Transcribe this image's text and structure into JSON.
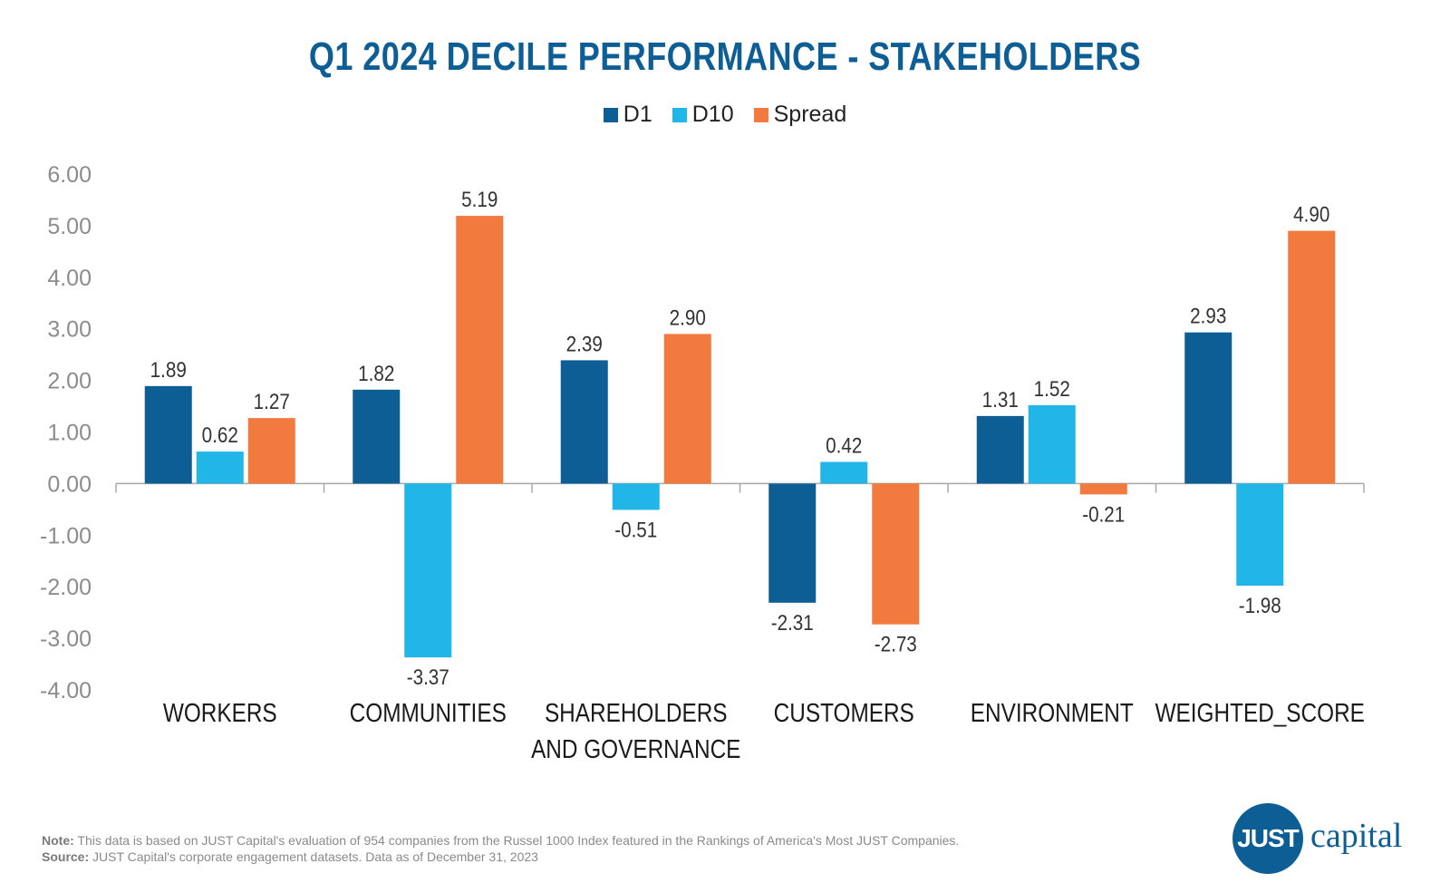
{
  "chart_data": {
    "type": "bar",
    "title": "Q1 2024 DECILE PERFORMANCE - STAKEHOLDERS",
    "categories": [
      "WORKERS",
      "COMMUNITIES",
      "SHAREHOLDERS AND GOVERNANCE",
      "CUSTOMERS",
      "ENVIRONMENT",
      "WEIGHTED_SCORE"
    ],
    "category_lines": [
      [
        "WORKERS"
      ],
      [
        "COMMUNITIES"
      ],
      [
        "SHAREHOLDERS",
        "AND GOVERNANCE"
      ],
      [
        "CUSTOMERS"
      ],
      [
        "ENVIRONMENT"
      ],
      [
        "WEIGHTED_SCORE"
      ]
    ],
    "series": [
      {
        "name": "D1",
        "color": "#0E5E96",
        "values": [
          1.89,
          1.82,
          2.39,
          -2.31,
          1.31,
          2.93
        ]
      },
      {
        "name": "D10",
        "color": "#22B5E8",
        "values": [
          0.62,
          -3.37,
          -0.51,
          0.42,
          1.52,
          -1.98
        ]
      },
      {
        "name": "Spread",
        "color": "#F27A3F",
        "values": [
          1.27,
          5.19,
          2.9,
          -2.73,
          -0.21,
          4.9
        ]
      }
    ],
    "ylim": [
      -4,
      6
    ],
    "yticks": [
      "6.00",
      "5.00",
      "4.00",
      "3.00",
      "2.00",
      "1.00",
      "0.00",
      "-1.00",
      "-2.00",
      "-3.00",
      "-4.00"
    ],
    "xlabel": "",
    "ylabel": "",
    "grid": false,
    "legend_position": "top-center"
  },
  "footer": {
    "note_label": "Note:",
    "note_text": " This data is based on JUST Capital's evaluation of 954 companies from the Russel 1000 Index featured in the Rankings of America's Most JUST Companies.",
    "source_label": "Source:",
    "source_text": " JUST Capital's corporate engagement datasets. Data as of December 31, 2023"
  },
  "logo": {
    "mark": "JUST",
    "word": "capital"
  }
}
